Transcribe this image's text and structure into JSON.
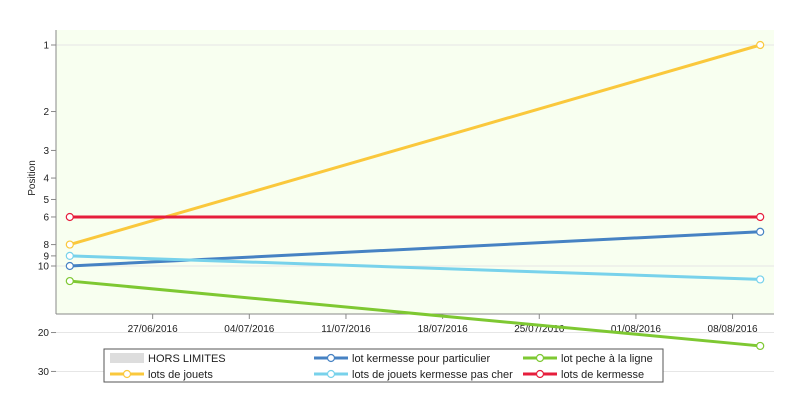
{
  "chart_data": {
    "type": "line",
    "ylabel": "Position",
    "y_scale": "log",
    "y_inverted": true,
    "y_ticks": [
      1,
      2,
      3,
      4,
      5,
      6,
      8,
      9,
      10,
      20,
      30
    ],
    "x_ticks": [
      "27/06/2016",
      "04/07/2016",
      "11/07/2016",
      "18/07/2016",
      "25/07/2016",
      "01/08/2016",
      "08/08/2016"
    ],
    "x_range": [
      "2016-06-20",
      "2016-08-11"
    ],
    "dates": [
      "2016-06-21",
      "2016-08-10"
    ],
    "hors_limites": {
      "label": "HORS LIMITES",
      "from": 30,
      "to": 40,
      "color": "#dddddd"
    },
    "plot_background": "#f8fff0",
    "series": [
      {
        "name": "lot kermesse pour particulier",
        "color": "#4682c3",
        "values": [
          10,
          7
        ]
      },
      {
        "name": "lot peche à la ligne",
        "color": "#7ec832",
        "values": [
          11.7,
          23
        ]
      },
      {
        "name": "lots de jouets",
        "color": "#fac83c",
        "values": [
          8,
          1
        ]
      },
      {
        "name": "lots de jouets kermesse pas cher",
        "color": "#78d2eb",
        "values": [
          9,
          11.5
        ]
      },
      {
        "name": "lots de kermesse",
        "color": "#e61e3c",
        "values": [
          6,
          6
        ]
      }
    ],
    "legend_position": "bottom"
  }
}
